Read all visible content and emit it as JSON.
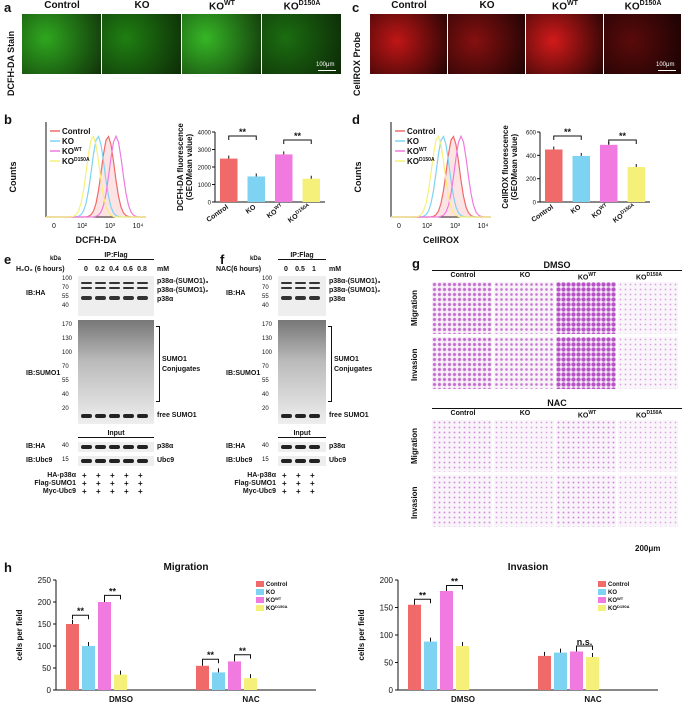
{
  "panel_a": {
    "letter": "a",
    "row_label": "DCFH-DA Stain",
    "columns": [
      "Control",
      "KO",
      "KO",
      "KO"
    ],
    "col_sup": [
      "",
      "",
      "WT",
      "D150A"
    ],
    "scale": "100μm",
    "tile_colors": [
      "#2fa71f",
      "#1f7f12",
      "#36b626",
      "#1b6d11"
    ]
  },
  "panel_c": {
    "letter": "c",
    "row_label": "CellROX Probe",
    "columns": [
      "Control",
      "KO",
      "KO",
      "KO"
    ],
    "col_sup": [
      "",
      "",
      "WT",
      "D150A"
    ],
    "scale": "100μm",
    "tile_colors": [
      "#c01616",
      "#861010",
      "#d21a1a",
      "#5a0a0a"
    ]
  },
  "panel_b": {
    "letter": "b",
    "legend": [
      "Control",
      "KO",
      "KO",
      "KO"
    ],
    "legend_sup": [
      "",
      "",
      "WT",
      "D150A"
    ],
    "hist_ylabel": "Counts",
    "hist_xlabel": "DCFH-DA",
    "hist_xticks": [
      "0",
      "10²",
      "10³",
      "10⁴"
    ],
    "bar_ylabel_1": "DCFH-DA fluorescence",
    "bar_ylabel_2": "(GEOMean value)",
    "bar_yticks": [
      "0",
      "1000",
      "2000",
      "3000",
      "4000"
    ],
    "sig": [
      "**",
      "**"
    ]
  },
  "panel_d": {
    "letter": "d",
    "legend": [
      "Control",
      "KO",
      "KO",
      "KO"
    ],
    "legend_sup": [
      "",
      "",
      "WT",
      "D150A"
    ],
    "hist_ylabel": "Counts",
    "hist_xlabel": "CellROX",
    "hist_xticks": [
      "0",
      "10²",
      "10³",
      "10⁴"
    ],
    "bar_ylabel_1": "CellROX fluorescence",
    "bar_ylabel_2": "(GEOMean value)",
    "bar_yticks": [
      "0",
      "200",
      "400",
      "600"
    ],
    "sig": [
      "**",
      "**"
    ]
  },
  "panel_e": {
    "letter": "e",
    "kda": "kDa",
    "ip": "IP:Flag",
    "treatment": "H₂O₂ (6 hours)",
    "doses": [
      "0",
      "0.2",
      "0.4",
      "0.6",
      "0.8"
    ],
    "unit": "mM",
    "ib_ha": "IB:HA",
    "ib_sumo": "IB:SUMO1",
    "ha_bands": [
      "p38α-(SUMO1)₃",
      "p38α-(SUMO1)₂",
      "p38α"
    ],
    "conj": [
      "SUMO1",
      "Conjugates"
    ],
    "free": "free SUMO1",
    "input": "Input",
    "in_ha": "IB:HA",
    "in_ubc": "IB:Ubc9",
    "in_p38": "p38α",
    "in_ubc9": "Ubc9",
    "mw_ha": [
      "100",
      "70",
      "55",
      "40"
    ],
    "mw_sumo": [
      "170",
      "130",
      "100",
      "70",
      "55",
      "40",
      "20"
    ],
    "mw_in": [
      "40",
      "15"
    ],
    "constructs": [
      "HA-p38α",
      "Flag-SUMO1",
      "Myc-Ubc9"
    ],
    "plus": "+"
  },
  "panel_f": {
    "letter": "f",
    "kda": "kDa",
    "ip": "IP:Flag",
    "treatment": "NAC(6 hours)",
    "doses": [
      "0",
      "0.5",
      "1"
    ],
    "unit": "mM",
    "ib_ha": "IB:HA",
    "ib_sumo": "IB:SUMO1",
    "ha_bands": [
      "p38α-(SUMO1)₃",
      "p38α-(SUMO1)₂",
      "p38α"
    ],
    "conj": [
      "SUMO1",
      "Conjugates"
    ],
    "free": "free SUMO1",
    "input": "Input",
    "in_ha": "IB:HA",
    "in_ubc": "IB:Ubc9",
    "in_p38": "p38α",
    "in_ubc9": "Ubc9",
    "mw_ha": [
      "100",
      "70",
      "55",
      "40"
    ],
    "mw_sumo": [
      "170",
      "130",
      "100",
      "70",
      "55",
      "40",
      "20"
    ],
    "mw_in": [
      "40",
      "15"
    ],
    "constructs": [
      "HA-p38α",
      "Flag-SUMO1",
      "Myc-Ubc9"
    ],
    "plus": "+"
  },
  "panel_g": {
    "letter": "g",
    "dmso": "DMSO",
    "nac": "NAC",
    "columns": [
      "Control",
      "KO",
      "KO",
      "KO"
    ],
    "col_sup": [
      "",
      "",
      "WT",
      "D150A"
    ],
    "rows": [
      "Migration",
      "Invasion"
    ],
    "scale": "200μm"
  },
  "panel_h": {
    "letter": "h",
    "ylabel": "cells per field",
    "legend": [
      "Control",
      "KO",
      "KO",
      "KO"
    ],
    "legend_sup": [
      "",
      "",
      "WT",
      "D150A"
    ],
    "sig": "**",
    "ns": "n.s."
  },
  "colors": {
    "control": "#f06a6a",
    "ko": "#7ed3f3",
    "kowt": "#f07ae0",
    "kod150a": "#f5f07a"
  },
  "chart_data": [
    {
      "type": "bar",
      "panel": "b",
      "categories": [
        "Control",
        "KO",
        "KOWT",
        "KOD150A"
      ],
      "values": [
        2480,
        1460,
        2720,
        1330
      ],
      "ylim": [
        0,
        4000
      ],
      "ylabel": "DCFH-DA fluorescence (GEOMean value)"
    },
    {
      "type": "bar",
      "panel": "d",
      "categories": [
        "Control",
        "KO",
        "KOWT",
        "KOD150A"
      ],
      "values": [
        450,
        395,
        490,
        300
      ],
      "ylim": [
        0,
        600
      ],
      "ylabel": "CellROX fluorescence (GEOMean value)"
    },
    {
      "type": "bar",
      "panel": "h",
      "title": "Migration",
      "categories": [
        "DMSO",
        "NAC"
      ],
      "series": [
        {
          "name": "Control",
          "values": [
            150,
            55
          ]
        },
        {
          "name": "KO",
          "values": [
            100,
            40
          ]
        },
        {
          "name": "KOWT",
          "values": [
            200,
            65
          ]
        },
        {
          "name": "KOD150A",
          "values": [
            35,
            27
          ]
        }
      ],
      "ylim": [
        0,
        250
      ],
      "yticks": [
        0,
        50,
        100,
        150,
        200,
        250
      ],
      "ylabel": "cells per field"
    },
    {
      "type": "bar",
      "panel": "h",
      "title": "Invasion",
      "categories": [
        "DMSO",
        "NAC"
      ],
      "series": [
        {
          "name": "Control",
          "values": [
            155,
            62
          ]
        },
        {
          "name": "KO",
          "values": [
            88,
            68
          ]
        },
        {
          "name": "KOWT",
          "values": [
            180,
            70
          ]
        },
        {
          "name": "KOD150A",
          "values": [
            80,
            60
          ]
        }
      ],
      "ylim": [
        0,
        200
      ],
      "yticks": [
        0,
        50,
        100,
        150,
        200
      ],
      "ylabel": "cells per field"
    }
  ]
}
